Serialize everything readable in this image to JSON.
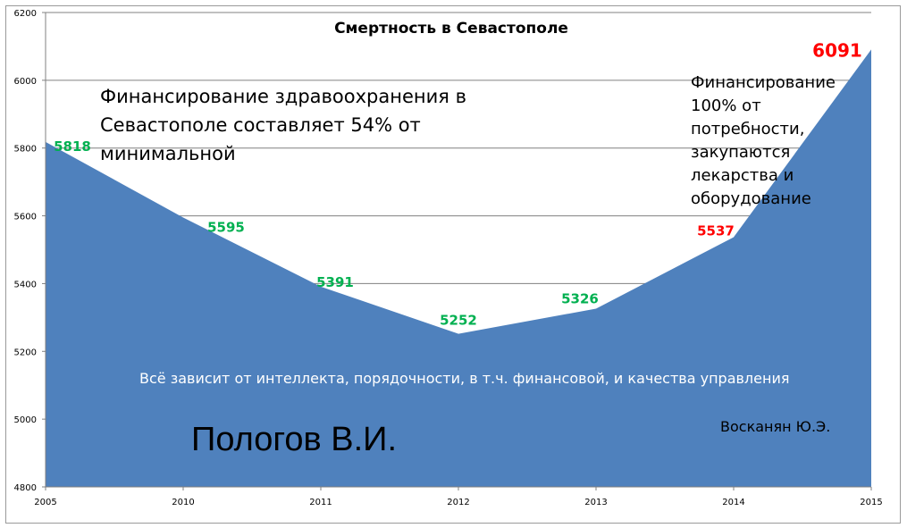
{
  "chart_data": {
    "type": "area",
    "title": "Смертность в Севастополе",
    "xlabel": "",
    "ylabel": "",
    "x": [
      "2005",
      "2010",
      "2011",
      "2012",
      "2013",
      "2014",
      "2015"
    ],
    "series": [
      {
        "values": [
          5818,
          5595,
          5391,
          5252,
          5326,
          5537,
          6091
        ]
      }
    ],
    "data_labels": [
      "5818",
      "5595",
      "5391",
      "5252",
      "5326",
      "5537",
      "6091"
    ],
    "ylim": [
      4800,
      6200
    ],
    "yticks": [
      "4800",
      "5000",
      "5200",
      "5400",
      "5600",
      "5800",
      "6000",
      "6200"
    ],
    "grid": true,
    "legend": "none",
    "annotations": {
      "funding": "Финансирование здравоохранения в Севастополе составляет 54% от минимальной",
      "full_funding": "Финансирование 100% от потребности, закупаются лекарства и оборудование",
      "everything_depends": "Всё зависит от интеллекта, порядочности, в т.ч. финансовой, и качества управления",
      "author_pologov": "Пологов В.И.",
      "author_voskanyan": "Восканян Ю.Э."
    }
  },
  "colors": {
    "area": "#4f81bd",
    "label_green": "#00b050",
    "label_red": "#ff0000",
    "grid": "#808080"
  }
}
